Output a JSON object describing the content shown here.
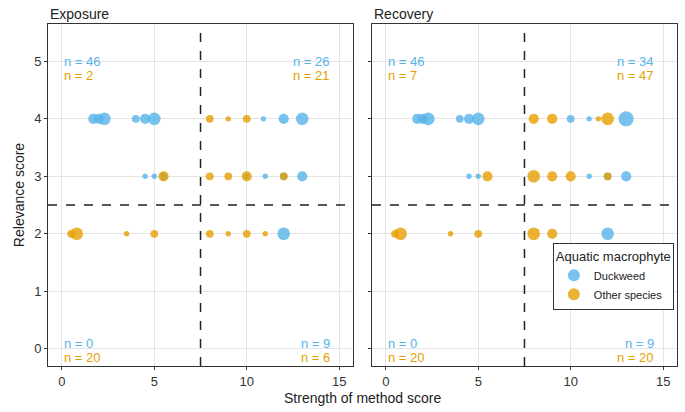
{
  "chart_data": {
    "type": "scatter",
    "x_label": "Strength of method score",
    "y_label": "Relevance score",
    "xlim": [
      -0.75,
      15.75
    ],
    "xticks": [
      0,
      5,
      10,
      15
    ],
    "ylim": [
      -0.3,
      5.65
    ],
    "yticks": [
      0,
      1,
      2,
      3,
      4,
      5
    ],
    "grid": true,
    "legend": "bottom right",
    "legend_title": "Aquatic macrophyte",
    "reference_lines": {
      "x": 7.5,
      "y": 2.5
    },
    "panels": [
      {
        "title": "Exposure",
        "series": [
          {
            "name": "Duckweed",
            "color": "#56B4E9",
            "marker": "circle",
            "x": [
              1.7,
              2.0,
              2.3,
              4.0,
              4.5,
              5.0,
              10.9,
              12,
              13,
              4.5,
              5.0,
              5.5,
              10,
              11,
              12,
              13,
              12
            ],
            "y": [
              4,
              4,
              4,
              4,
              4,
              4,
              4,
              4,
              4,
              3,
              3,
              3,
              3,
              3,
              3,
              3,
              2
            ],
            "sizes": [
              3,
              3,
              4,
              2,
              3,
              4,
              1,
              3,
              4,
              1,
              1,
              2,
              1,
              1,
              2,
              3,
              4
            ]
          },
          {
            "name": "Other species",
            "color": "#E69F00",
            "marker": "circle",
            "x": [
              8,
              9,
              10,
              5.5,
              8,
              9,
              10,
              12,
              0.5,
              0.8,
              3.5,
              5,
              8,
              9,
              10,
              11
            ],
            "y": [
              4,
              4,
              4,
              3,
              3,
              3,
              3,
              3,
              2,
              2,
              2,
              2,
              2,
              2,
              2,
              2
            ],
            "sizes": [
              2,
              1,
              2,
              3,
              2,
              2,
              3,
              2,
              2,
              4,
              1,
              2,
              2,
              1,
              2,
              1
            ]
          }
        ],
        "annotations": [
          {
            "text": "n = 46",
            "x": 0,
            "y": 5.0,
            "series": "Duckweed"
          },
          {
            "text": "n = 2",
            "x": 0,
            "y": 4.75,
            "series": "Other species"
          },
          {
            "text": "n = 26",
            "x": 14.6,
            "y": 5.0,
            "series": "Duckweed"
          },
          {
            "text": "n = 21",
            "x": 14.6,
            "y": 4.75,
            "series": "Other species"
          },
          {
            "text": "n = 0",
            "x": 0,
            "y": 0.1,
            "series": "Duckweed"
          },
          {
            "text": "n = 20",
            "x": 0,
            "y": -0.15,
            "series": "Other species"
          },
          {
            "text": "n = 9",
            "x": 14.6,
            "y": 0.1,
            "series": "Duckweed"
          },
          {
            "text": "n = 6",
            "x": 14.6,
            "y": -0.15,
            "series": "Other species"
          }
        ]
      },
      {
        "title": "Recovery",
        "series": [
          {
            "name": "Duckweed",
            "color": "#56B4E9",
            "marker": "circle",
            "x": [
              1.7,
              2.0,
              2.3,
              4.0,
              4.5,
              5.0,
              10,
              11,
              13,
              4.5,
              5.0,
              11,
              12,
              13,
              12
            ],
            "y": [
              4,
              4,
              4,
              4,
              4,
              4,
              4,
              4,
              4,
              3,
              3,
              3,
              3,
              3,
              2
            ],
            "sizes": [
              3,
              3,
              4,
              2,
              3,
              4,
              2,
              1,
              5,
              1,
              1,
              1,
              2,
              3,
              4
            ]
          },
          {
            "name": "Other species",
            "color": "#E69F00",
            "marker": "circle",
            "x": [
              8,
              9,
              11.5,
              12,
              5.5,
              8,
              9,
              10,
              12,
              0.5,
              0.8,
              3.5,
              5,
              8,
              9
            ],
            "y": [
              4,
              4,
              4,
              4,
              3,
              3,
              3,
              3,
              3,
              2,
              2,
              2,
              2,
              2,
              2
            ],
            "sizes": [
              3,
              3,
              1,
              4,
              3,
              4,
              3,
              3,
              2,
              2,
              4,
              1,
              2,
              4,
              3
            ]
          }
        ],
        "annotations": [
          {
            "text": "n = 46",
            "x": 0,
            "y": 5.0,
            "series": "Duckweed"
          },
          {
            "text": "n = 7",
            "x": 0,
            "y": 4.75,
            "series": "Other species"
          },
          {
            "text": "n = 34",
            "x": 14.6,
            "y": 5.0,
            "series": "Duckweed"
          },
          {
            "text": "n = 47",
            "x": 14.6,
            "y": 4.75,
            "series": "Other species"
          },
          {
            "text": "n = 0",
            "x": 0,
            "y": 0.1,
            "series": "Duckweed"
          },
          {
            "text": "n = 20",
            "x": 0,
            "y": -0.15,
            "series": "Other species"
          },
          {
            "text": "n = 9",
            "x": 14.6,
            "y": 0.1,
            "series": "Duckweed"
          },
          {
            "text": "n = 20",
            "x": 14.6,
            "y": -0.15,
            "series": "Other species"
          }
        ]
      }
    ]
  }
}
